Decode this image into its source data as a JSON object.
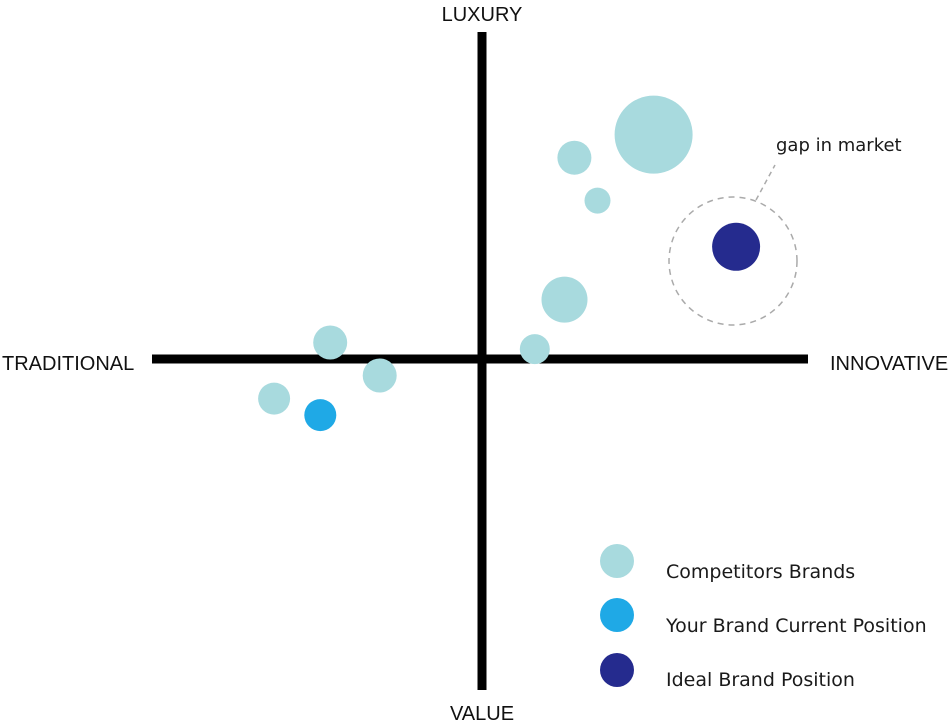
{
  "axes": {
    "top": "LUXURY",
    "bottom": "VALUE",
    "left": "TRADITIONAL",
    "right": "INNOVATIVE"
  },
  "colors": {
    "axis": "#000000",
    "competitor": "#a8dade",
    "current": "#1fa9e6",
    "ideal": "#252b8e",
    "gap_ring": "#aaaaaa"
  },
  "points": [
    {
      "kind": "competitor",
      "x": 0.52,
      "y": 0.68
    },
    {
      "kind": "competitor",
      "x": 0.28,
      "y": 0.61
    },
    {
      "kind": "competitor",
      "x": 0.35,
      "y": 0.48
    },
    {
      "kind": "competitor",
      "x": 0.25,
      "y": 0.18
    },
    {
      "kind": "competitor",
      "x": 0.16,
      "y": 0.03
    },
    {
      "kind": "competitor",
      "x": -0.46,
      "y": 0.05
    },
    {
      "kind": "competitor",
      "x": -0.31,
      "y": -0.05
    },
    {
      "kind": "competitor",
      "x": -0.63,
      "y": -0.12
    },
    {
      "kind": "current",
      "x": -0.49,
      "y": -0.17
    },
    {
      "kind": "ideal",
      "x": 0.77,
      "y": 0.34
    }
  ],
  "annotation": {
    "text": "gap in market"
  },
  "legend": [
    {
      "kind": "competitor",
      "label": "Competitors Brands"
    },
    {
      "kind": "current",
      "label": "Your Brand Current Position"
    },
    {
      "kind": "ideal",
      "label": "Ideal Brand Position"
    }
  ]
}
